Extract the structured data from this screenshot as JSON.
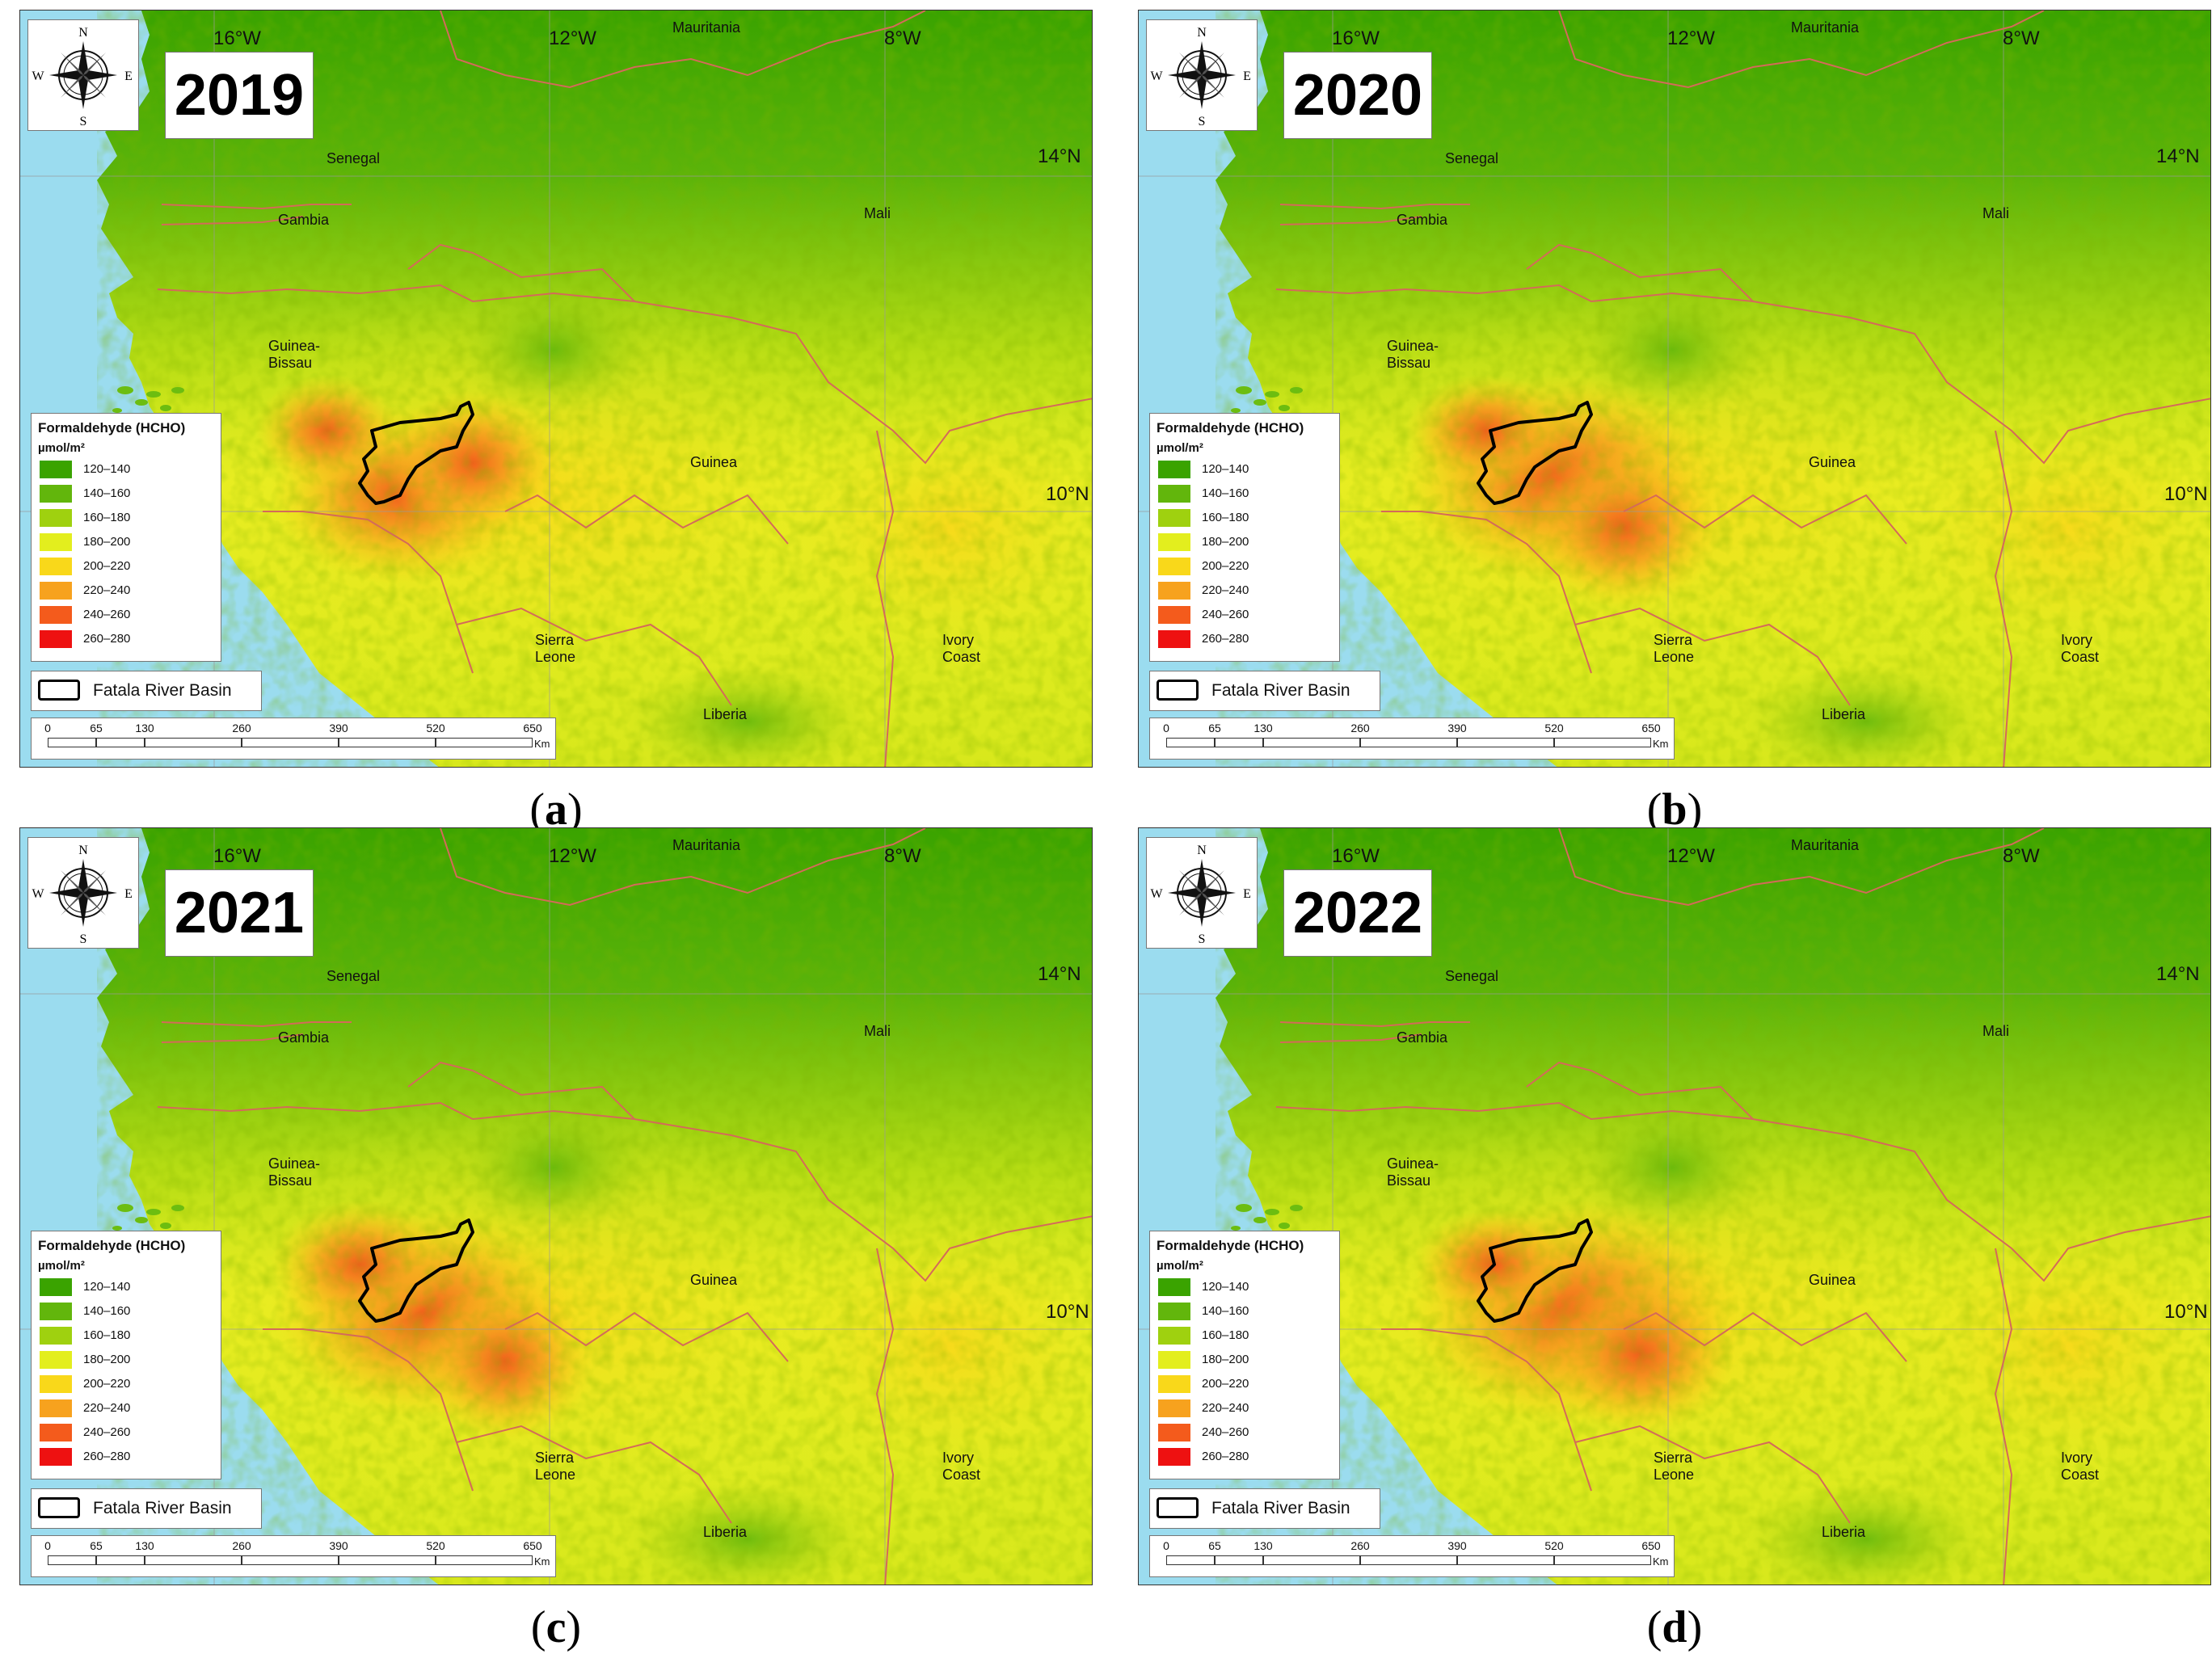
{
  "legend": {
    "title": "Formaldehyde (HCHO)",
    "unit": "µmol/m²",
    "classes": [
      {
        "label": "120–140",
        "color": "#3aa300"
      },
      {
        "label": "140–160",
        "color": "#62b60c"
      },
      {
        "label": "160–180",
        "color": "#9fd10f"
      },
      {
        "label": "180–200",
        "color": "#e3ee1e"
      },
      {
        "label": "200–220",
        "color": "#f9d81a"
      },
      {
        "label": "220–240",
        "color": "#f7a21e"
      },
      {
        "label": "240–260",
        "color": "#f45b1c"
      },
      {
        "label": "260–280",
        "color": "#ee1111"
      }
    ],
    "basin_label": "Fatala River Basin"
  },
  "scale": {
    "ticks": [
      "0",
      "65",
      "130",
      "260",
      "390",
      "520",
      "650"
    ],
    "unit": "Km"
  },
  "graticule": {
    "longitudes": [
      "16°W",
      "12°W",
      "8°W"
    ],
    "latitudes": [
      "14°N",
      "10°N"
    ]
  },
  "places": [
    "Mauritania",
    "Senegal",
    "Gambia",
    "Mali",
    "Guinea-Bissau",
    "Guinea",
    "Sierra Leone",
    "Ivory Coast",
    "Liberia"
  ],
  "compass": {
    "n": "N",
    "s": "S",
    "e": "E",
    "w": "W"
  },
  "panels": [
    {
      "year": "2019",
      "caption": "a"
    },
    {
      "year": "2020",
      "caption": "b"
    },
    {
      "year": "2021",
      "caption": "c"
    },
    {
      "year": "2022",
      "caption": "d"
    }
  ],
  "colors": {
    "ocean": "#9bdcef",
    "border": "#d46a5a",
    "basin": "#000000"
  }
}
